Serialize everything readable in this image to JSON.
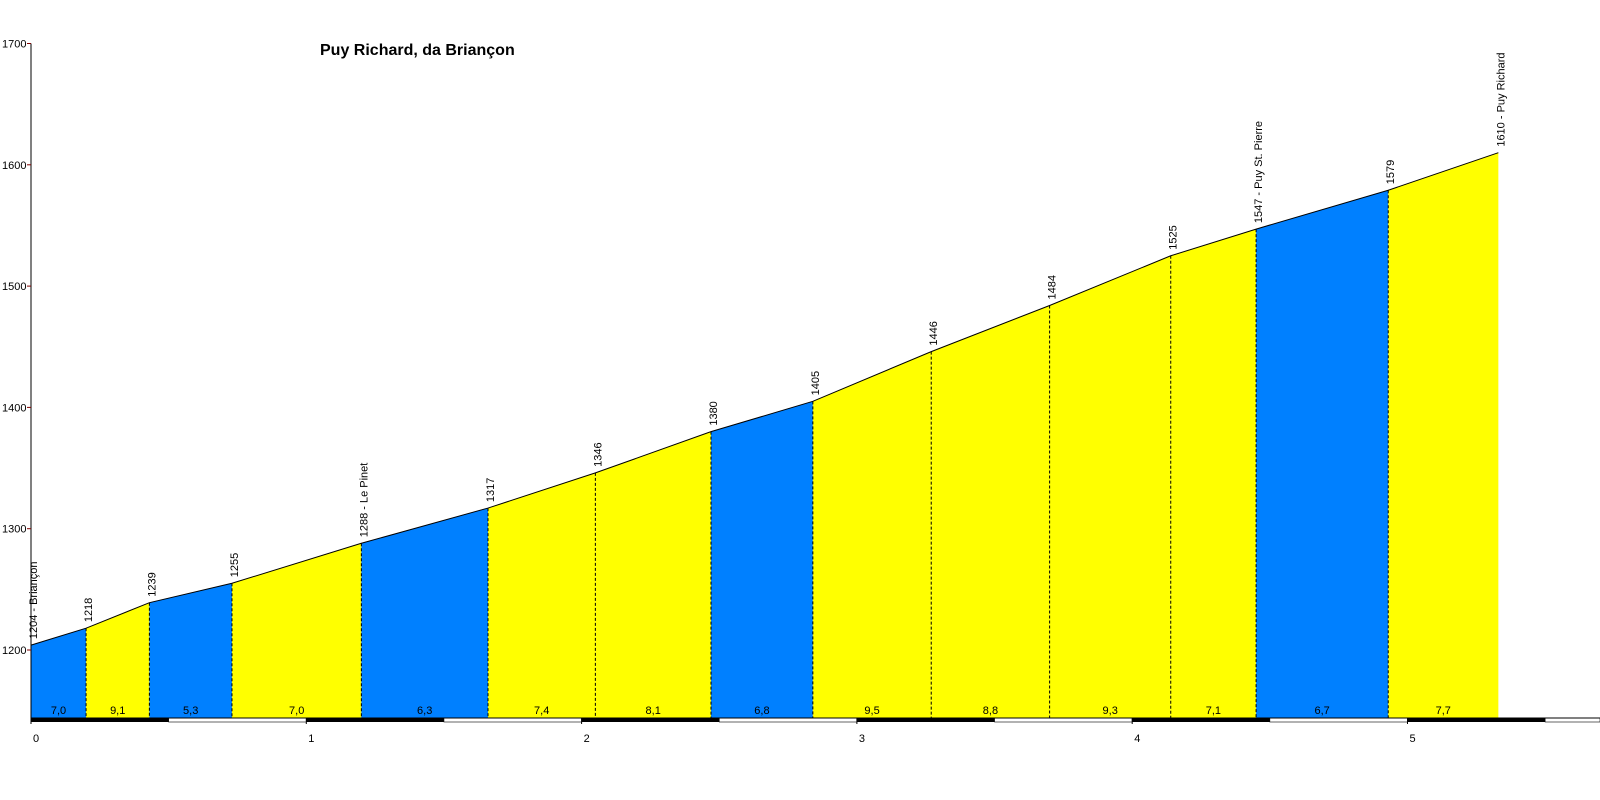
{
  "chart_data": {
    "type": "area",
    "title": "Puy Richard, da Briançon",
    "xlim": [
      0,
      5.7
    ],
    "ylim": [
      1140,
      1700
    ],
    "yticks": [
      1200,
      1300,
      1400,
      1500,
      1600,
      1700
    ],
    "xticks": [
      0,
      1,
      2,
      3,
      4,
      5
    ],
    "colors": {
      "blue": "#0080FF",
      "yellow": "#FFFF00",
      "ytick": "#800000"
    },
    "points": [
      {
        "x": 0.0,
        "y": 1204,
        "label": "1204 - Briançon"
      },
      {
        "x": 0.2,
        "y": 1218,
        "label": "1218"
      },
      {
        "x": 0.43,
        "y": 1239,
        "label": "1239"
      },
      {
        "x": 0.73,
        "y": 1255,
        "label": "1255"
      },
      {
        "x": 1.2,
        "y": 1288,
        "label": "1288 - Le Pinet"
      },
      {
        "x": 1.66,
        "y": 1317,
        "label": "1317"
      },
      {
        "x": 2.05,
        "y": 1346,
        "label": "1346"
      },
      {
        "x": 2.47,
        "y": 1380,
        "label": "1380"
      },
      {
        "x": 2.84,
        "y": 1405,
        "label": "1405"
      },
      {
        "x": 3.27,
        "y": 1446,
        "label": "1446"
      },
      {
        "x": 3.7,
        "y": 1484,
        "label": "1484"
      },
      {
        "x": 4.14,
        "y": 1525,
        "label": "1525"
      },
      {
        "x": 4.45,
        "y": 1547,
        "label": "1547 - Puy St. Pierre"
      },
      {
        "x": 4.93,
        "y": 1579,
        "label": "1579"
      },
      {
        "x": 5.33,
        "y": 1610,
        "label": "1610 - Puy Richard"
      }
    ],
    "segments": [
      {
        "gradient": "7,0",
        "color": "blue"
      },
      {
        "gradient": "9,1",
        "color": "yellow"
      },
      {
        "gradient": "5,3",
        "color": "blue"
      },
      {
        "gradient": "7,0",
        "color": "yellow"
      },
      {
        "gradient": "6,3",
        "color": "blue"
      },
      {
        "gradient": "7,4",
        "color": "yellow"
      },
      {
        "gradient": "8,1",
        "color": "yellow"
      },
      {
        "gradient": "6,8",
        "color": "blue"
      },
      {
        "gradient": "9,5",
        "color": "yellow"
      },
      {
        "gradient": "8,8",
        "color": "yellow"
      },
      {
        "gradient": "9,3",
        "color": "yellow"
      },
      {
        "gradient": "7,1",
        "color": "yellow"
      },
      {
        "gradient": "6,7",
        "color": "blue"
      },
      {
        "gradient": "7,7",
        "color": "yellow"
      }
    ]
  }
}
